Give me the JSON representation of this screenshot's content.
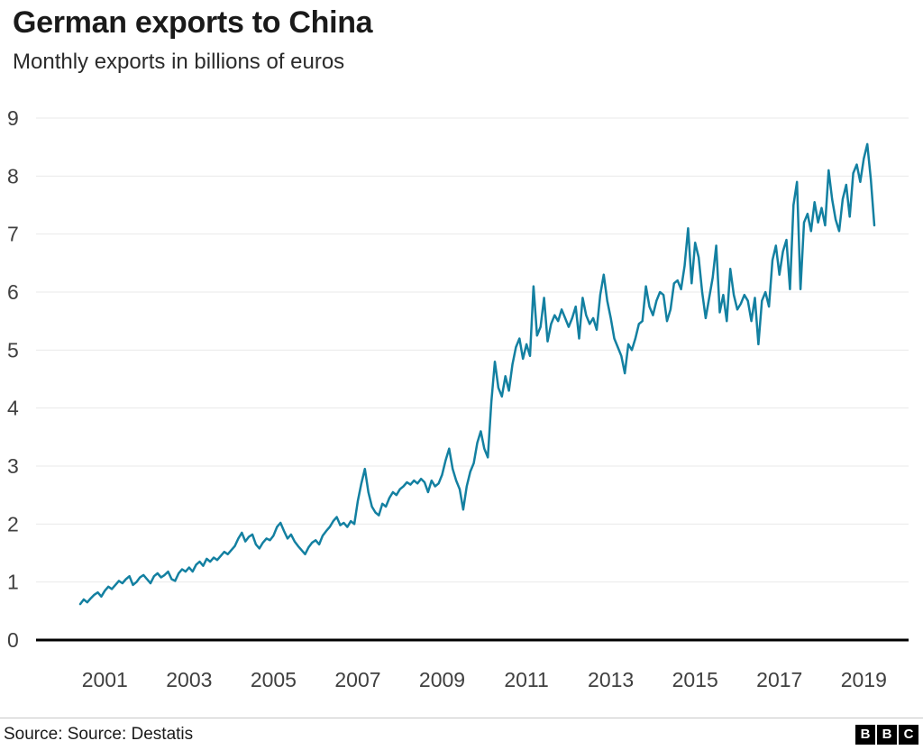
{
  "header": {
    "title": "German exports to China",
    "subtitle": "Monthly exports in billions of euros"
  },
  "footer": {
    "source": "Source: Source: Destatis",
    "logo_letters": [
      "B",
      "B",
      "C"
    ]
  },
  "chart_data": {
    "type": "line",
    "title": "German exports to China",
    "subtitle": "Monthly exports in billions of euros",
    "xlabel": "",
    "ylabel": "",
    "unit": "billions of euros",
    "ylim": [
      0,
      9
    ],
    "yticks": [
      0,
      1,
      2,
      3,
      4,
      5,
      6,
      7,
      8,
      9
    ],
    "xticks": [
      2001,
      2003,
      2005,
      2007,
      2009,
      2011,
      2013,
      2015,
      2017,
      2019
    ],
    "grid": "horizontal",
    "legend": "none",
    "line_color": "#1380A1",
    "axis_color": "#000000",
    "gridline_color": "#e9e9e9",
    "tick_label_color": "#404040",
    "series": [
      {
        "name": "German monthly exports to China",
        "start": "2000-06",
        "frequency": "monthly",
        "values": [
          0.62,
          0.7,
          0.65,
          0.72,
          0.78,
          0.82,
          0.75,
          0.85,
          0.92,
          0.88,
          0.95,
          1.02,
          0.98,
          1.05,
          1.1,
          0.95,
          1.0,
          1.08,
          1.12,
          1.05,
          0.98,
          1.1,
          1.15,
          1.08,
          1.12,
          1.18,
          1.05,
          1.02,
          1.15,
          1.22,
          1.18,
          1.25,
          1.18,
          1.3,
          1.35,
          1.28,
          1.4,
          1.35,
          1.42,
          1.38,
          1.45,
          1.52,
          1.48,
          1.55,
          1.62,
          1.75,
          1.85,
          1.7,
          1.78,
          1.82,
          1.65,
          1.58,
          1.68,
          1.75,
          1.72,
          1.8,
          1.95,
          2.02,
          1.88,
          1.75,
          1.82,
          1.7,
          1.62,
          1.55,
          1.48,
          1.6,
          1.68,
          1.72,
          1.65,
          1.8,
          1.88,
          1.95,
          2.05,
          2.12,
          1.98,
          2.02,
          1.95,
          2.05,
          2.0,
          2.4,
          2.7,
          2.95,
          2.55,
          2.3,
          2.2,
          2.15,
          2.35,
          2.3,
          2.45,
          2.55,
          2.5,
          2.6,
          2.65,
          2.72,
          2.68,
          2.75,
          2.7,
          2.78,
          2.72,
          2.55,
          2.75,
          2.65,
          2.7,
          2.85,
          3.1,
          3.3,
          2.95,
          2.75,
          2.6,
          2.25,
          2.65,
          2.9,
          3.05,
          3.4,
          3.6,
          3.3,
          3.15,
          4.1,
          4.8,
          4.35,
          4.2,
          4.55,
          4.3,
          4.75,
          5.05,
          5.2,
          4.85,
          5.1,
          4.9,
          6.1,
          5.25,
          5.4,
          5.9,
          5.15,
          5.45,
          5.6,
          5.5,
          5.7,
          5.55,
          5.4,
          5.55,
          5.75,
          5.2,
          5.9,
          5.6,
          5.45,
          5.55,
          5.35,
          5.95,
          6.3,
          5.85,
          5.55,
          5.2,
          5.05,
          4.9,
          4.6,
          5.1,
          5.0,
          5.2,
          5.45,
          5.5,
          6.1,
          5.75,
          5.6,
          5.85,
          6.0,
          5.95,
          5.5,
          5.7,
          6.15,
          6.2,
          6.05,
          6.45,
          7.1,
          6.15,
          6.85,
          6.6,
          6.0,
          5.55,
          5.9,
          6.25,
          6.8,
          5.65,
          5.95,
          5.5,
          6.4,
          5.95,
          5.7,
          5.8,
          5.95,
          5.85,
          5.5,
          5.9,
          5.1,
          5.85,
          6.0,
          5.75,
          6.55,
          6.8,
          6.3,
          6.7,
          6.9,
          6.05,
          7.5,
          7.9,
          6.05,
          7.2,
          7.35,
          7.05,
          7.55,
          7.2,
          7.45,
          7.15,
          8.1,
          7.6,
          7.25,
          7.05,
          7.6,
          7.85,
          7.3,
          8.05,
          8.2,
          7.9,
          8.3,
          8.55,
          7.95,
          7.15
        ]
      }
    ]
  }
}
